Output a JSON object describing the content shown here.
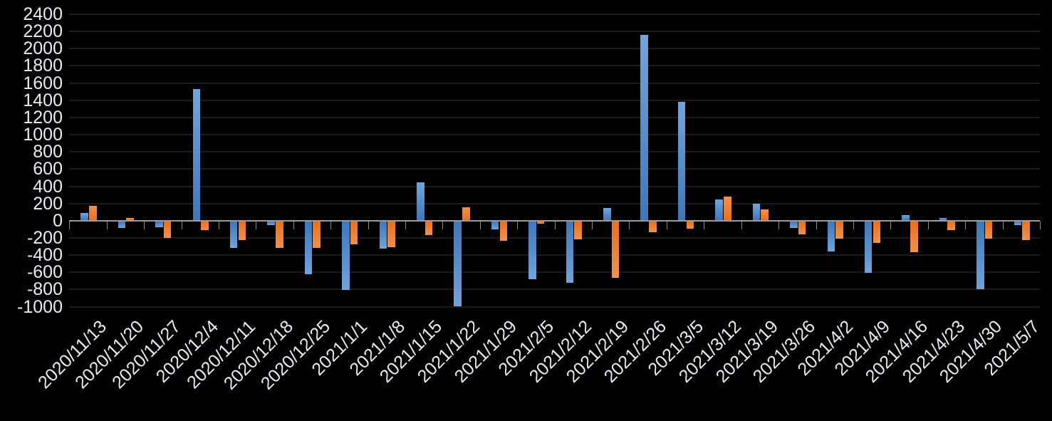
{
  "chart_data": {
    "type": "bar",
    "title": "",
    "categories": [
      "2020/11/13",
      "2020/11/20",
      "2020/11/27",
      "2020/12/4",
      "2020/12/11",
      "2020/12/18",
      "2020/12/25",
      "2021/1/1",
      "2021/1/8",
      "2021/1/15",
      "2021/1/22",
      "2021/1/29",
      "2021/2/5",
      "2021/2/12",
      "2021/2/19",
      "2021/2/26",
      "2021/3/5",
      "2021/3/12",
      "2021/3/19",
      "2021/3/26",
      "2021/4/2",
      "2021/4/9",
      "2021/4/16",
      "2021/4/23",
      "2021/4/30",
      "2021/5/7"
    ],
    "series": [
      {
        "name": "blue",
        "color": "#4E89C8",
        "values": [
          80,
          -80,
          -70,
          1520,
          -305,
          -45,
          -615,
          -800,
          -320,
          440,
          -990,
          -90,
          -670,
          -715,
          135,
          2150,
          1375,
          235,
          185,
          -75,
          -350,
          -595,
          60,
          25,
          -790,
          -45
        ]
      },
      {
        "name": "orange",
        "color": "#ED7D31",
        "values": [
          160,
          25,
          -195,
          -100,
          -215,
          -310,
          -310,
          -265,
          -300,
          -160,
          145,
          -225,
          -25,
          -210,
          -660,
          -130,
          -85,
          270,
          125,
          -150,
          -200,
          -250,
          -360,
          -105,
          -200,
          -215
        ]
      }
    ],
    "ylim": [
      -1000,
      2400
    ],
    "y_tick_step": 200,
    "y_ticks": [
      2400,
      2200,
      2000,
      1800,
      1600,
      1400,
      1200,
      1000,
      800,
      600,
      400,
      200,
      0,
      -200,
      -400,
      -600,
      -800,
      -1000
    ],
    "grid": true,
    "legend": "none",
    "colors": {
      "background": "#000000",
      "gridline": "#1C1C1C",
      "axis_line": "#9C9C9C",
      "tick_mark": "#8A8A8A",
      "axis_label_text": "#E8EBF1"
    }
  }
}
